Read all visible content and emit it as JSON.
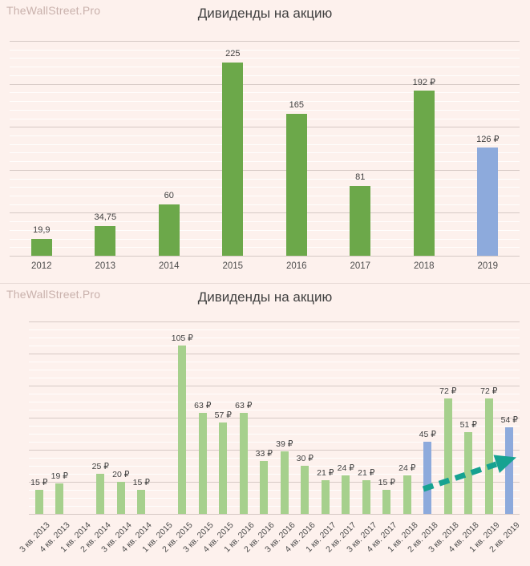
{
  "watermark": "TheWallStreet.Pro",
  "currency_symbol": "₽",
  "colors": {
    "background": "#fdf1ed",
    "green_dark": "#6ca84a",
    "green_light": "#a6d08d",
    "blue": "#8daadc",
    "arrow": "#16a291",
    "grid_major": "#d6c9c5",
    "grid_minor": "rgba(255,255,255,0.88)",
    "title_text": "#3f3f3f",
    "axis_text": "#4d4d4d",
    "watermark_text": "#c9b1ac"
  },
  "chart_data": [
    {
      "type": "bar",
      "title": "Дивиденды на акцию",
      "categories": [
        "2012",
        "2013",
        "2014",
        "2015",
        "2016",
        "2017",
        "2018",
        "2019"
      ],
      "values": [
        19.9,
        34.75,
        60,
        225,
        165,
        81,
        192,
        126
      ],
      "labels": [
        "19,9",
        "34,75",
        "60",
        "225",
        "165",
        "81",
        "192 ₽",
        "126 ₽"
      ],
      "bar_colors": [
        "green",
        "green",
        "green",
        "green",
        "green",
        "green",
        "green",
        "blue"
      ],
      "xlabel": "",
      "ylabel": "",
      "ylim": [
        0,
        250
      ],
      "gridlines": {
        "major_step": 50,
        "minor_step": 10
      },
      "legend": "none"
    },
    {
      "type": "bar",
      "title": "Дивиденды на акцию",
      "categories": [
        "3 кв. 2013",
        "4 кв. 2013",
        "1 кв. 2014",
        "2 кв. 2014",
        "3 кв. 2014",
        "4 кв. 2014",
        "1 кв. 2015",
        "2 кв. 2015",
        "3 кв. 2015",
        "4 кв. 2015",
        "1 кв. 2016",
        "2 кв. 2016",
        "3 кв. 2016",
        "4 кв. 2016",
        "1 кв. 2017",
        "2 кв. 2017",
        "3 кв. 2017",
        "4 кв. 2017",
        "1 кв. 2018",
        "2 кв. 2018",
        "3 кв. 2018",
        "4 кв. 2018",
        "1 кв. 2019",
        "2 кв. 2019"
      ],
      "values": [
        15,
        19,
        null,
        25,
        20,
        15,
        null,
        105,
        63,
        57,
        63,
        33,
        39,
        30,
        21,
        24,
        21,
        15,
        24,
        45,
        72,
        51,
        72,
        54
      ],
      "labels": [
        "15 ₽",
        "19 ₽",
        "",
        "25 ₽",
        "20 ₽",
        "15 ₽",
        "",
        "105 ₽",
        "63 ₽",
        "57 ₽",
        "63 ₽",
        "33 ₽",
        "39 ₽",
        "30 ₽",
        "21 ₽",
        "24 ₽",
        "21 ₽",
        "15 ₽",
        "24 ₽",
        "45 ₽",
        "72 ₽",
        "51 ₽",
        "72 ₽",
        "54 ₽"
      ],
      "bar_colors": [
        "green",
        "green",
        "green",
        "green",
        "green",
        "green",
        "green",
        "green",
        "green",
        "green",
        "green",
        "green",
        "green",
        "green",
        "green",
        "green",
        "green",
        "green",
        "green",
        "blue",
        "green",
        "green",
        "green",
        "blue"
      ],
      "xlabel": "",
      "ylabel": "",
      "ylim": [
        0,
        120
      ],
      "gridlines": {
        "major_step": 20,
        "minor_step": 5
      },
      "legend": "none",
      "annotation": "dashed teal arrow indicating upward trend from 2 кв. 2018 to 2 кв. 2019"
    }
  ]
}
